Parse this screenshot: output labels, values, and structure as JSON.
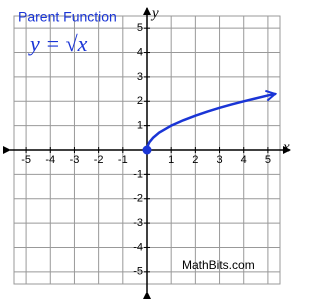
{
  "chart_data": {
    "type": "line",
    "title": "Parent Function",
    "formula": "y = √x",
    "source": "MathBits.com",
    "xlabel": "x",
    "ylabel": "y",
    "xlim": [
      -5.5,
      5.5
    ],
    "ylim": [
      -5.5,
      5.5
    ],
    "xticks": [
      -5,
      -4,
      -3,
      -2,
      -1,
      1,
      2,
      3,
      4,
      5
    ],
    "yticks": [
      -5,
      -4,
      -3,
      -2,
      -1,
      1,
      2,
      3,
      4,
      5
    ],
    "grid": true,
    "x": [
      0,
      0.05,
      0.1,
      0.25,
      0.5,
      1,
      1.5,
      2,
      2.5,
      3,
      3.5,
      4,
      4.5,
      5,
      5.3
    ],
    "series": [
      {
        "name": "y = √x",
        "color": "#1a35d6",
        "values": [
          0,
          0.22,
          0.32,
          0.5,
          0.71,
          1,
          1.22,
          1.41,
          1.58,
          1.73,
          1.87,
          2,
          2.12,
          2.24,
          2.3
        ]
      }
    ]
  }
}
